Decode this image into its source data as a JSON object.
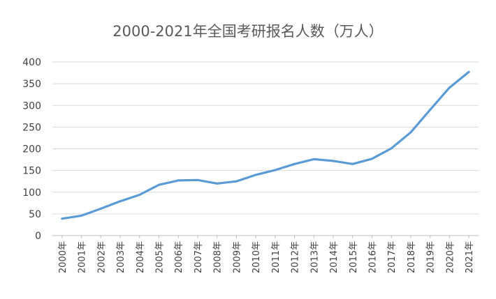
{
  "chart_data": {
    "type": "line",
    "title": "2000-2021年全国考研报名人数（万人）",
    "xlabel": "",
    "ylabel": "",
    "categories": [
      "2000年",
      "2001年",
      "2002年",
      "2003年",
      "2004年",
      "2005年",
      "2006年",
      "2007年",
      "2008年",
      "2009年",
      "2010年",
      "2011年",
      "2012年",
      "2013年",
      "2014年",
      "2015年",
      "2016年",
      "2017年",
      "2018年",
      "2019年",
      "2020年",
      "2021年"
    ],
    "series": [
      {
        "values": [
          39,
          46,
          62,
          79,
          94,
          117,
          127,
          128,
          120,
          125,
          140,
          151,
          165,
          176,
          172,
          165,
          177,
          201,
          238,
          290,
          341,
          377
        ]
      }
    ],
    "ylim": [
      0,
      400
    ],
    "yticks": [
      0,
      50,
      100,
      150,
      200,
      250,
      300,
      350,
      400
    ],
    "grid": true,
    "legend": "none",
    "colors": {
      "series": "#5b9bd5",
      "grid": "#d9d9d9",
      "title": "#595959",
      "text": "#404040"
    }
  }
}
